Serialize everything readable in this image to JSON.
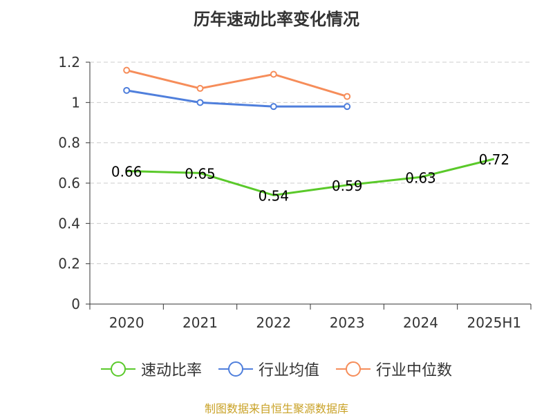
{
  "chart_data": {
    "type": "line",
    "title": "历年速动比率变化情况",
    "categories": [
      "2020",
      "2021",
      "2022",
      "2023",
      "2024",
      "2025H1"
    ],
    "ylim": [
      0,
      1.2
    ],
    "yticks": [
      "0",
      "0.2",
      "0.4",
      "0.6",
      "0.8",
      "1",
      "1.2"
    ],
    "grid": true,
    "legend_position": "bottom",
    "series": [
      {
        "name": "速动比率",
        "color": "#5ac92a",
        "values": [
          0.66,
          0.65,
          0.54,
          0.59,
          0.63,
          0.72
        ],
        "labels": [
          "0.66",
          "0.65",
          "0.54",
          "0.59",
          "0.63",
          "0.72"
        ]
      },
      {
        "name": "行业均值",
        "color": "#4f7fdc",
        "values": [
          1.06,
          1.0,
          0.98,
          0.98,
          null,
          null
        ]
      },
      {
        "name": "行业中位数",
        "color": "#f68d5a",
        "values": [
          1.16,
          1.07,
          1.14,
          1.03,
          null,
          null
        ]
      }
    ]
  },
  "source": "制图数据来自恒生聚源数据库"
}
